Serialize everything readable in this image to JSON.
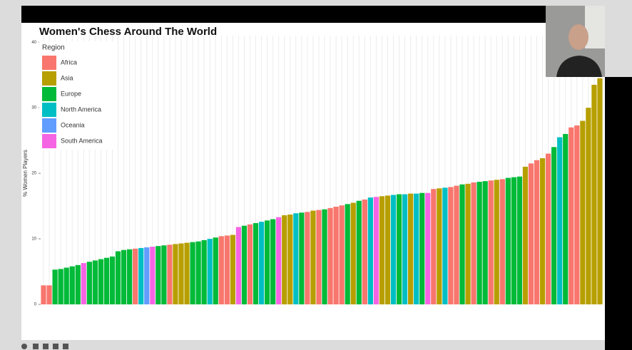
{
  "chart_data": {
    "type": "bar",
    "title": "Women's Chess Around The World",
    "ylabel": "% Women Players",
    "values": [
      2.9,
      2.9,
      5.3,
      5.4,
      5.6,
      5.8,
      6.0,
      6.3,
      6.5,
      6.7,
      6.9,
      7.1,
      7.3,
      8.1,
      8.3,
      8.4,
      8.5,
      8.6,
      8.7,
      8.8,
      8.9,
      9.0,
      9.1,
      9.2,
      9.3,
      9.4,
      9.5,
      9.6,
      9.8,
      10.0,
      10.2,
      10.4,
      10.5,
      10.6,
      11.8,
      12.0,
      12.2,
      12.4,
      12.6,
      12.8,
      13.0,
      13.3,
      13.6,
      13.7,
      13.9,
      14.0,
      14.1,
      14.3,
      14.4,
      14.5,
      14.7,
      14.9,
      15.1,
      15.3,
      15.5,
      15.8,
      16.0,
      16.3,
      16.4,
      16.5,
      16.6,
      16.7,
      16.8,
      16.8,
      16.9,
      16.9,
      17.0,
      17.0,
      17.6,
      17.7,
      17.8,
      17.9,
      18.1,
      18.3,
      18.4,
      18.6,
      18.7,
      18.8,
      18.9,
      19.0,
      19.1,
      19.3,
      19.4,
      19.5,
      21.0,
      21.5,
      22.0,
      22.3,
      23.0,
      24.0,
      25.5,
      26.0,
      27.0,
      27.3,
      28.0,
      30.0,
      33.5,
      34.5
    ],
    "colors": [
      "#f8766d",
      "#f8766d",
      "#00ba38",
      "#00ba38",
      "#00ba38",
      "#00ba38",
      "#00ba38",
      "#f564e3",
      "#00ba38",
      "#00ba38",
      "#00ba38",
      "#00ba38",
      "#00ba38",
      "#00ba38",
      "#00ba38",
      "#00ba38",
      "#f8766d",
      "#00bfc4",
      "#619cff",
      "#f564e3",
      "#00ba38",
      "#00ba38",
      "#f8766d",
      "#b79f00",
      "#b79f00",
      "#b79f00",
      "#00ba38",
      "#00ba38",
      "#00ba38",
      "#00bfc4",
      "#00ba38",
      "#f8766d",
      "#f8766d",
      "#b79f00",
      "#f564e3",
      "#00ba38",
      "#f8766d",
      "#00ba38",
      "#00bfc4",
      "#00ba38",
      "#00ba38",
      "#f564e3",
      "#b79f00",
      "#b79f00",
      "#00bfc4",
      "#00ba38",
      "#f8766d",
      "#b79f00",
      "#f8766d",
      "#00ba38",
      "#f8766d",
      "#f8766d",
      "#f8766d",
      "#00ba38",
      "#b79f00",
      "#00ba38",
      "#f8766d",
      "#00bfc4",
      "#f564e3",
      "#b79f00",
      "#b79f00",
      "#00bfc4",
      "#00ba38",
      "#00bfc4",
      "#b79f00",
      "#00bfc4",
      "#00ba38",
      "#f564e3",
      "#f8766d",
      "#b79f00",
      "#00bfc4",
      "#f8766d",
      "#f8766d",
      "#00ba38",
      "#b79f00",
      "#f8766d",
      "#00ba38",
      "#00ba38",
      "#f8766d",
      "#b79f00",
      "#f8766d",
      "#00ba38",
      "#00ba38",
      "#00ba38",
      "#b79f00",
      "#f8766d",
      "#f8766d",
      "#b79f00",
      "#f8766d",
      "#00ba38",
      "#00bfc4",
      "#00ba38",
      "#f8766d",
      "#f8766d",
      "#b79f00",
      "#b79f00",
      "#b79f00",
      "#b79f00"
    ],
    "ylim": [
      0,
      41
    ],
    "yticks": [
      0,
      10,
      20,
      30,
      40
    ],
    "grid": true,
    "legend": {
      "title": "Region",
      "corner": "top-left",
      "items": [
        {
          "name": "Africa",
          "color": "#f8766d"
        },
        {
          "name": "Asia",
          "color": "#b79f00"
        },
        {
          "name": "Europe",
          "color": "#00ba38"
        },
        {
          "name": "North America",
          "color": "#00bfc4"
        },
        {
          "name": "Oceania",
          "color": "#619cff"
        },
        {
          "name": "South America",
          "color": "#f564e3"
        }
      ]
    }
  }
}
